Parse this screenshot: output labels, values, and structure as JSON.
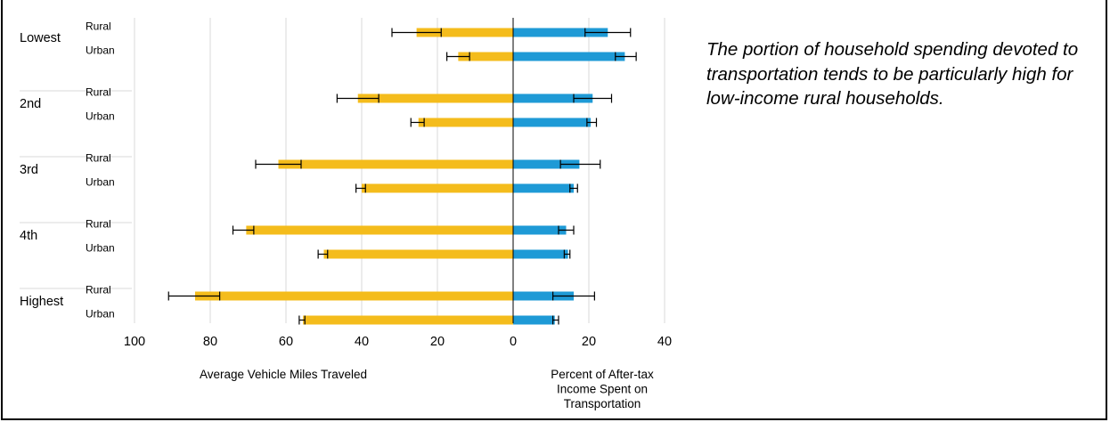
{
  "chart_data": {
    "type": "bar",
    "orientation": "horizontal",
    "layout": "back-to-back",
    "groups": [
      "Lowest",
      "2nd",
      "3rd",
      "4th",
      "Highest"
    ],
    "subgroups": [
      "Rural",
      "Urban"
    ],
    "left_panel": {
      "xlabel": "Average Vehicle Miles Traveled",
      "color": "#f4bc1c",
      "xlim": [
        100,
        0
      ],
      "ticks": [
        100,
        80,
        60,
        40,
        20,
        0
      ],
      "values": [
        {
          "group": "Lowest",
          "subgroup": "Rural",
          "value": 25.5,
          "err_low": 19,
          "err_high": 32
        },
        {
          "group": "Lowest",
          "subgroup": "Urban",
          "value": 14.5,
          "err_low": 11.5,
          "err_high": 17.5
        },
        {
          "group": "2nd",
          "subgroup": "Rural",
          "value": 41,
          "err_low": 35.5,
          "err_high": 46.5
        },
        {
          "group": "2nd",
          "subgroup": "Urban",
          "value": 25,
          "err_low": 23.5,
          "err_high": 27
        },
        {
          "group": "3rd",
          "subgroup": "Rural",
          "value": 62,
          "err_low": 56,
          "err_high": 68
        },
        {
          "group": "3rd",
          "subgroup": "Urban",
          "value": 40,
          "err_low": 39,
          "err_high": 41.5
        },
        {
          "group": "4th",
          "subgroup": "Rural",
          "value": 70.5,
          "err_low": 68.5,
          "err_high": 74
        },
        {
          "group": "4th",
          "subgroup": "Urban",
          "value": 50,
          "err_low": 49,
          "err_high": 51.5
        },
        {
          "group": "Highest",
          "subgroup": "Rural",
          "value": 84,
          "err_low": 77.5,
          "err_high": 91
        },
        {
          "group": "Highest",
          "subgroup": "Urban",
          "value": 55.5,
          "err_low": 55,
          "err_high": 56.5
        }
      ]
    },
    "right_panel": {
      "xlabel": "Percent of After-tax Income Spent on Transportation",
      "color": "#1e9ad6",
      "xlim": [
        0,
        40
      ],
      "ticks": [
        0,
        20,
        40
      ],
      "values": [
        {
          "group": "Lowest",
          "subgroup": "Rural",
          "value": 25,
          "err_low": 19,
          "err_high": 31
        },
        {
          "group": "Lowest",
          "subgroup": "Urban",
          "value": 29.5,
          "err_low": 27,
          "err_high": 32.5
        },
        {
          "group": "2nd",
          "subgroup": "Rural",
          "value": 21,
          "err_low": 16,
          "err_high": 26
        },
        {
          "group": "2nd",
          "subgroup": "Urban",
          "value": 20.5,
          "err_low": 19.5,
          "err_high": 22
        },
        {
          "group": "3rd",
          "subgroup": "Rural",
          "value": 17.5,
          "err_low": 12.5,
          "err_high": 23
        },
        {
          "group": "3rd",
          "subgroup": "Urban",
          "value": 16,
          "err_low": 15,
          "err_high": 17
        },
        {
          "group": "4th",
          "subgroup": "Rural",
          "value": 14,
          "err_low": 12,
          "err_high": 16
        },
        {
          "group": "4th",
          "subgroup": "Urban",
          "value": 14.5,
          "err_low": 13.5,
          "err_high": 15
        },
        {
          "group": "Highest",
          "subgroup": "Rural",
          "value": 16,
          "err_low": 10.5,
          "err_high": 21.5
        },
        {
          "group": "Highest",
          "subgroup": "Urban",
          "value": 11,
          "err_low": 10.5,
          "err_high": 12
        }
      ]
    },
    "grid": true
  },
  "annotation": "The portion of household spending devoted to transportation tends to be particularly high for low-income rural households."
}
